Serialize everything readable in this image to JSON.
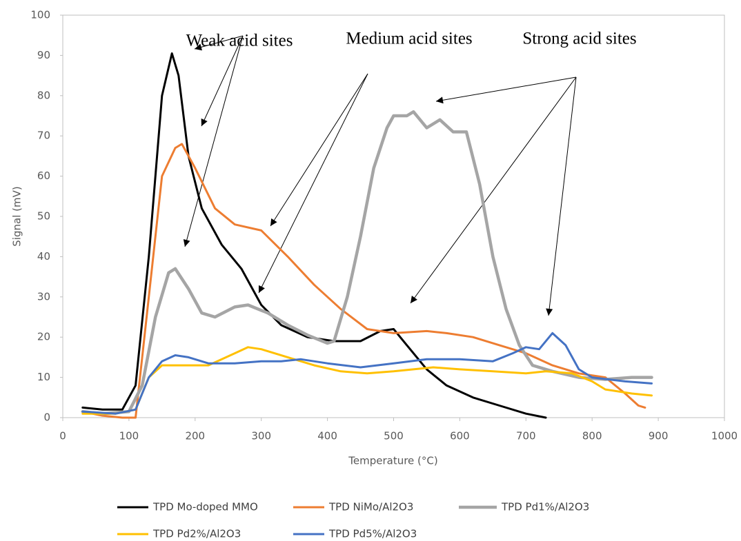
{
  "chart_data": {
    "type": "line",
    "xlabel": "Temperature (°C)",
    "ylabel": "Signal  (mV)",
    "xlim": [
      0,
      1000
    ],
    "xticks": [
      0,
      100,
      200,
      300,
      400,
      500,
      600,
      700,
      800,
      900,
      1000
    ],
    "ylim": [
      0,
      100
    ],
    "yticks": [
      0,
      10,
      20,
      30,
      40,
      50,
      60,
      70,
      80,
      90,
      100
    ],
    "grid": false,
    "annotations": [
      "Weak acid sites",
      "Medium acid sites",
      "Strong acid sites"
    ],
    "series": [
      {
        "name": "TPD Mo-doped MMO",
        "color": "#000000",
        "x": [
          30,
          60,
          90,
          110,
          130,
          150,
          165,
          175,
          190,
          210,
          240,
          270,
          300,
          330,
          370,
          410,
          450,
          480,
          500,
          520,
          550,
          580,
          620,
          660,
          700,
          730
        ],
        "values": [
          2.5,
          2,
          2,
          8,
          40,
          80,
          90.5,
          85,
          65,
          52,
          43,
          37,
          28,
          23,
          20,
          19,
          19,
          21.5,
          22,
          18,
          12,
          8,
          5,
          3,
          1,
          0
        ]
      },
      {
        "name": "TPD NiMo/Al2O3",
        "color": "#ed7d31",
        "x": [
          30,
          60,
          90,
          110,
          130,
          150,
          170,
          180,
          200,
          230,
          260,
          300,
          340,
          380,
          420,
          460,
          500,
          550,
          580,
          620,
          660,
          700,
          740,
          780,
          820,
          850,
          870,
          880
        ],
        "values": [
          1.5,
          0.5,
          0,
          0,
          30,
          60,
          67,
          68,
          62,
          52,
          48,
          46.5,
          40,
          33,
          27,
          22,
          21,
          21.5,
          21,
          20,
          18,
          16,
          13,
          11,
          10,
          6,
          3,
          2.5
        ]
      },
      {
        "name": "TPD Pd1%/Al2O3",
        "color": "#a5a5a5",
        "x": [
          30,
          60,
          100,
          120,
          140,
          160,
          170,
          190,
          210,
          230,
          260,
          280,
          310,
          340,
          370,
          400,
          410,
          430,
          450,
          470,
          490,
          500,
          520,
          530,
          550,
          570,
          590,
          610,
          630,
          650,
          670,
          690,
          710,
          740,
          780,
          820,
          860,
          890
        ],
        "values": [
          1.5,
          1,
          1.5,
          8,
          25,
          36,
          37,
          32,
          26,
          25,
          27.5,
          28,
          26,
          23,
          20.5,
          18.5,
          19,
          30,
          45,
          62,
          72,
          75,
          75,
          76,
          72,
          74,
          71,
          71,
          58,
          40,
          27,
          18,
          13,
          11.5,
          10,
          9.5,
          10,
          10
        ]
      },
      {
        "name": "TPD Pd2%/Al2O3",
        "color": "#ffc000",
        "x": [
          30,
          80,
          110,
          130,
          150,
          180,
          220,
          260,
          280,
          300,
          340,
          380,
          420,
          460,
          500,
          560,
          600,
          650,
          700,
          730,
          770,
          800,
          820,
          860,
          890
        ],
        "values": [
          1,
          1,
          2,
          10,
          13,
          13,
          13,
          16,
          17.5,
          17,
          15,
          13,
          11.5,
          11,
          11.5,
          12.5,
          12,
          11.5,
          11,
          11.5,
          11,
          9,
          7,
          6,
          5.5
        ]
      },
      {
        "name": "TPD Pd5%/Al2O3",
        "color": "#4472c4",
        "x": [
          30,
          80,
          110,
          130,
          150,
          170,
          190,
          220,
          260,
          300,
          330,
          360,
          400,
          450,
          500,
          550,
          600,
          650,
          680,
          700,
          720,
          740,
          760,
          780,
          800,
          850,
          890
        ],
        "values": [
          1.5,
          1,
          2,
          10,
          14,
          15.5,
          15,
          13.5,
          13.5,
          14,
          14,
          14.5,
          13.5,
          12.5,
          13.5,
          14.5,
          14.5,
          14,
          16,
          17.5,
          17,
          21,
          18,
          12,
          10,
          9,
          8.5
        ]
      }
    ]
  }
}
